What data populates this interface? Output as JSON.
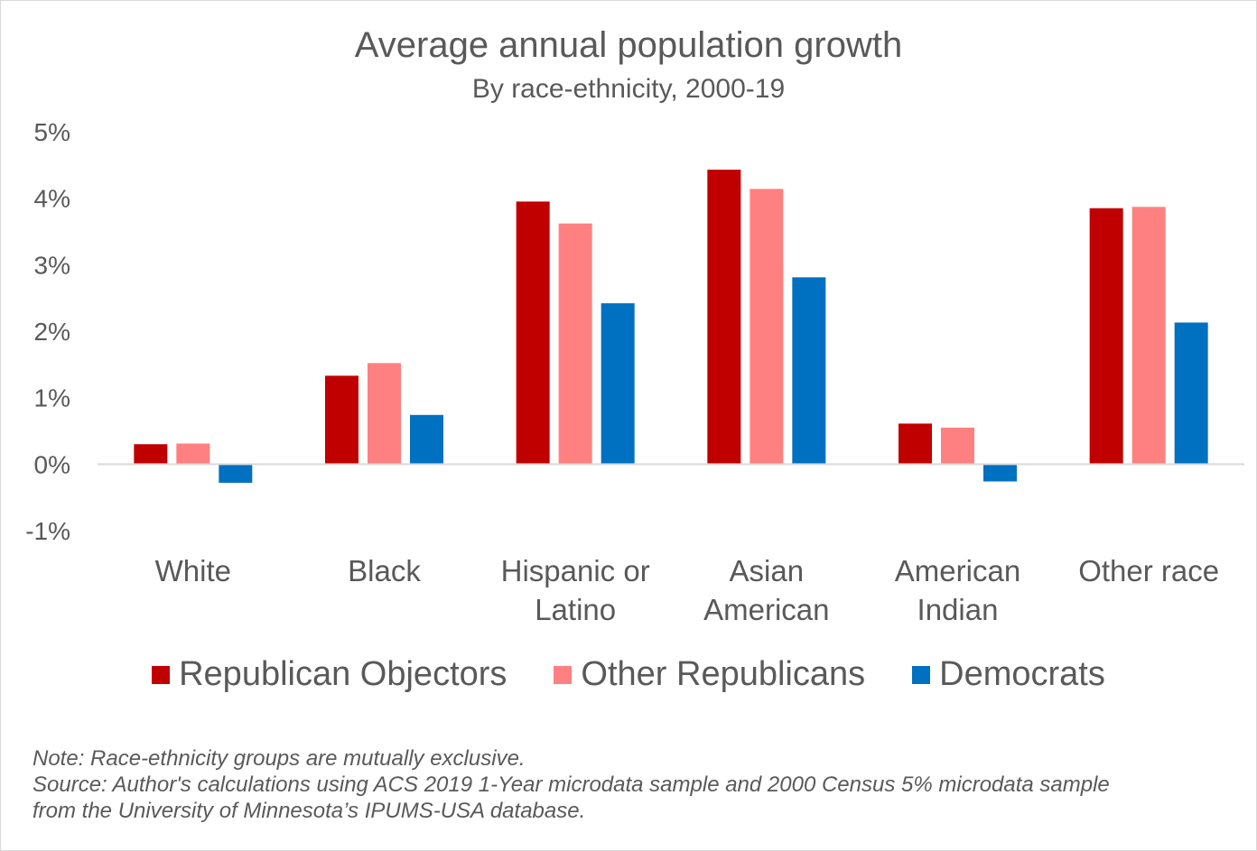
{
  "chart_data": {
    "type": "bar",
    "title": "Average annual population growth",
    "subtitle": "By race-ethnicity, 2000-19",
    "categories": [
      [
        "White"
      ],
      [
        "Black"
      ],
      [
        "Hispanic or",
        "Latino"
      ],
      [
        "Asian",
        "American"
      ],
      [
        "American",
        "Indian"
      ],
      [
        "Other race"
      ]
    ],
    "series": [
      {
        "name": "Republican Objectors",
        "color": "#c00000",
        "values": [
          0.3,
          1.33,
          3.95,
          4.43,
          0.61,
          3.85
        ]
      },
      {
        "name": "Other Republicans",
        "color": "#ff8080",
        "values": [
          0.31,
          1.52,
          3.62,
          4.14,
          0.55,
          3.87
        ]
      },
      {
        "name": "Democrats",
        "color": "#0070c0",
        "values": [
          -0.28,
          0.74,
          2.42,
          2.81,
          -0.26,
          2.13
        ]
      }
    ],
    "y_ticks": [
      "5%",
      "4%",
      "3%",
      "2%",
      "1%",
      "0%",
      "-1%"
    ],
    "y_tick_values": [
      5,
      4,
      3,
      2,
      1,
      0,
      -1
    ],
    "ylim": [
      -1,
      5
    ],
    "xlabel": "",
    "ylabel": "",
    "legend_position": "bottom"
  },
  "notes": {
    "note": "Note: Race-ethnicity groups are mutually exclusive.",
    "source_line1": "Source: Author's calculations using ACS 2019 1-Year microdata sample and 2000 Census 5% microdata sample",
    "source_line2": "from the University of Minnesota’s IPUMS-USA database."
  }
}
